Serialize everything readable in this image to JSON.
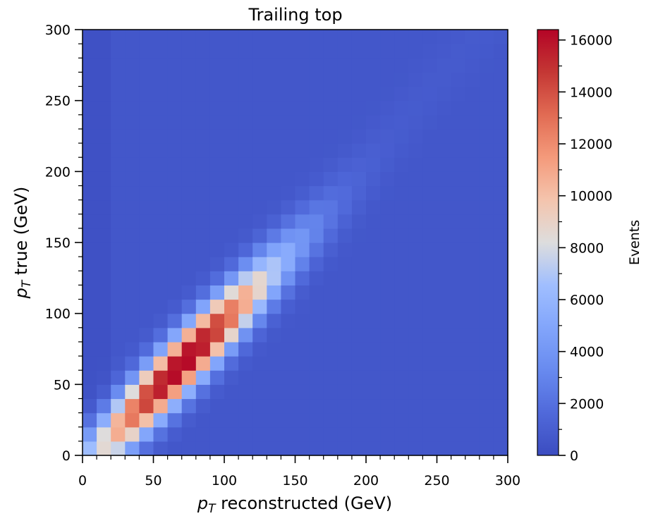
{
  "chart_data": {
    "type": "heatmap",
    "title": "Trailing top",
    "xlabel_symbol": "p",
    "xlabel_sub": "T",
    "xlabel_rest": " reconstructed (GeV)",
    "ylabel_symbol": "p",
    "ylabel_sub": "T",
    "ylabel_rest": " true (GeV)",
    "xlim": [
      0,
      300
    ],
    "ylim": [
      0,
      300
    ],
    "bin_width": 10,
    "x_ticks": [
      0,
      50,
      100,
      150,
      200,
      250,
      300
    ],
    "x_tick_labels": [
      "0",
      "50",
      "100",
      "150",
      "200",
      "250",
      "300"
    ],
    "y_ticks": [
      0,
      50,
      100,
      150,
      200,
      250,
      300
    ],
    "y_tick_labels": [
      "0",
      "50",
      "100",
      "150",
      "200",
      "250",
      "300"
    ],
    "colormap": "coolwarm",
    "colorbar": {
      "label": "Events",
      "range": [
        0,
        16400
      ],
      "ticks": [
        0,
        2000,
        4000,
        6000,
        8000,
        10000,
        12000,
        14000,
        16000
      ],
      "tick_labels": [
        "0",
        "2000",
        "4000",
        "6000",
        "8000",
        "10000",
        "12000",
        "14000",
        "16000"
      ]
    },
    "model": {
      "description_values": "Counts per 10x10 GeV bin; peak near reco 75 GeV, true 65 GeV; band along diagonal",
      "peak_value": 16400,
      "peak_x": 72,
      "peak_y": 65,
      "background": 600
    }
  }
}
